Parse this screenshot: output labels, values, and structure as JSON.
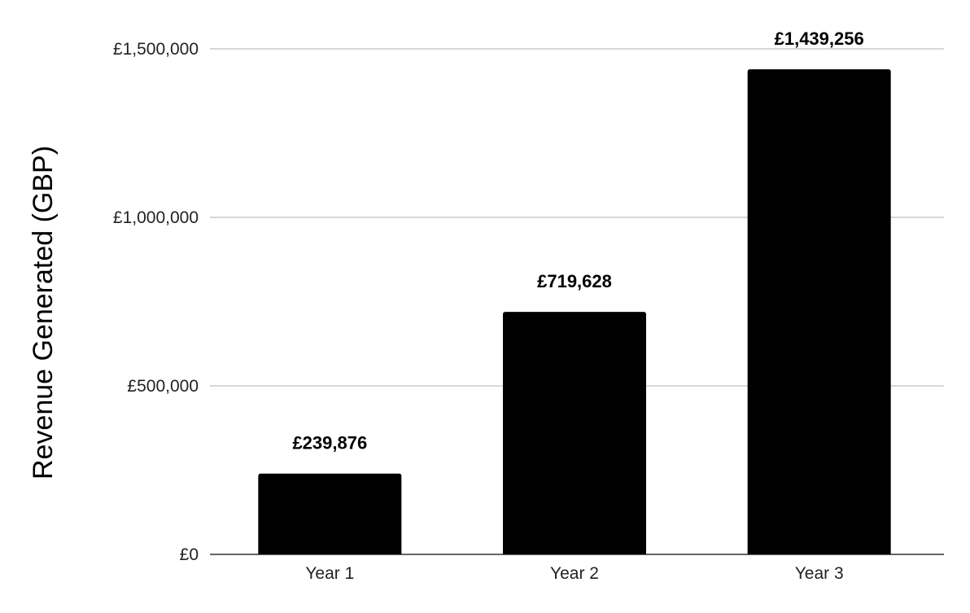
{
  "chart_data": {
    "type": "bar",
    "categories": [
      "Year 1",
      "Year 2",
      "Year 3"
    ],
    "values": [
      239876,
      719628,
      1439256
    ],
    "data_labels": [
      "£239,876",
      "£719,628",
      "£1,439,256"
    ],
    "title": "",
    "xlabel": "",
    "ylabel": "Revenue Generated (GBP)",
    "ylim": [
      0,
      1500000
    ],
    "yticks": [
      0,
      500000,
      1000000,
      1500000
    ],
    "ytick_labels": [
      "£0",
      "£500,000",
      "£1,000,000",
      "£1,500,000"
    ],
    "grid": true,
    "legend": "none",
    "bar_color": "#000000",
    "grid_color": "#cccccc"
  }
}
